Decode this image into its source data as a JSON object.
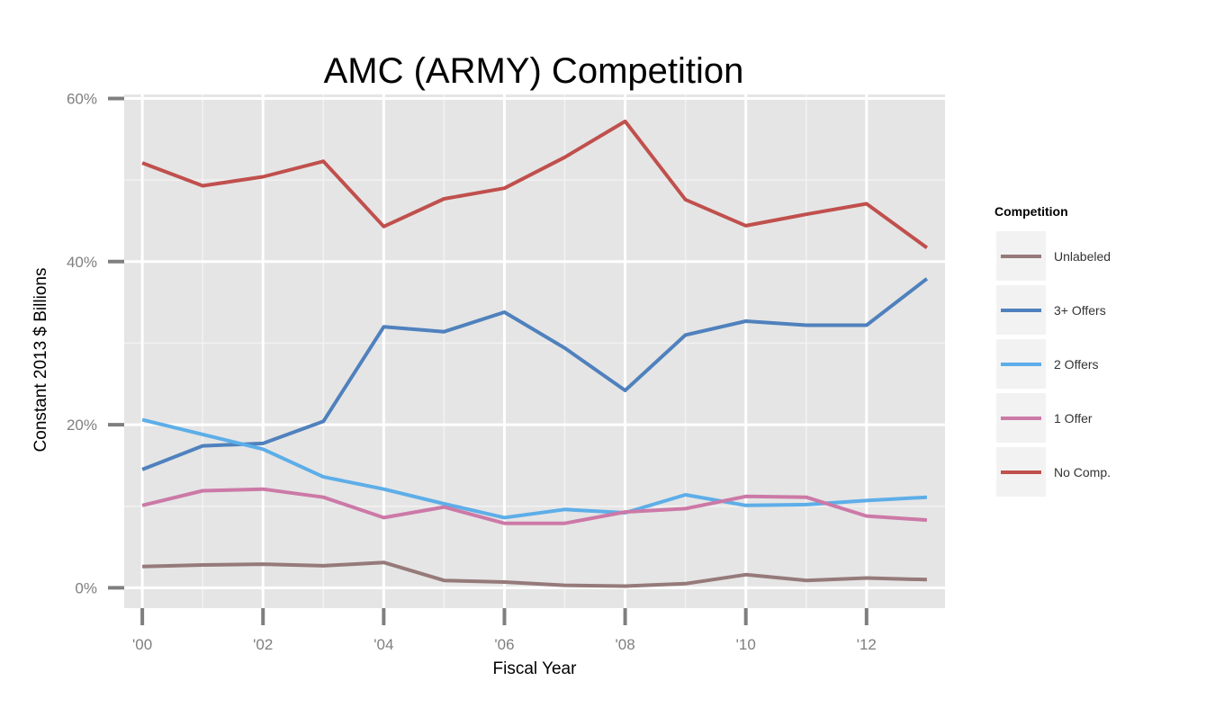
{
  "chart_data": {
    "type": "line",
    "title": "AMC (ARMY) Competition",
    "xlabel": "Fiscal Year",
    "ylabel": "Constant 2013 $ Billions",
    "x": [
      2000,
      2001,
      2002,
      2003,
      2004,
      2005,
      2006,
      2007,
      2008,
      2009,
      2010,
      2011,
      2012,
      2013
    ],
    "xlim": [
      1999.7,
      2013.3
    ],
    "ylim": [
      -2.5,
      60.5
    ],
    "x_ticks": [
      2000,
      2002,
      2004,
      2006,
      2008,
      2010,
      2012
    ],
    "x_tick_labels": [
      "'00",
      "'02",
      "'04",
      "'06",
      "'08",
      "'10",
      "'12"
    ],
    "y_ticks": [
      0,
      20,
      40,
      60
    ],
    "y_tick_labels": [
      "0%",
      "20%",
      "40%",
      "60%"
    ],
    "grid": true,
    "legend": {
      "title": "Competition",
      "position": "right"
    },
    "series": [
      {
        "name": "Unlabeled",
        "color": "#967a7a",
        "values": [
          2.6,
          2.8,
          2.9,
          2.7,
          3.1,
          0.9,
          0.7,
          0.3,
          0.2,
          0.5,
          1.6,
          0.9,
          1.2,
          1.0
        ]
      },
      {
        "name": "3+ Offers",
        "color": "#4f81bd",
        "values": [
          14.5,
          17.4,
          17.7,
          20.4,
          32.0,
          31.4,
          33.8,
          29.4,
          24.2,
          31.0,
          32.7,
          32.2,
          32.2,
          37.9
        ]
      },
      {
        "name": "2 Offers",
        "color": "#5daee8",
        "values": [
          20.6,
          18.8,
          17.0,
          13.6,
          12.1,
          10.3,
          8.6,
          9.6,
          9.2,
          11.4,
          10.1,
          10.2,
          10.7,
          11.1
        ]
      },
      {
        "name": "1 Offer",
        "color": "#cc79a7",
        "values": [
          10.1,
          11.9,
          12.1,
          11.1,
          8.6,
          9.9,
          7.9,
          7.9,
          9.3,
          9.7,
          11.2,
          11.1,
          8.8,
          8.3
        ]
      },
      {
        "name": "No Comp.",
        "color": "#c0504d",
        "values": [
          52.1,
          49.3,
          50.4,
          52.3,
          44.3,
          47.7,
          49.0,
          52.8,
          57.2,
          47.6,
          44.4,
          45.8,
          47.1,
          41.7
        ]
      }
    ]
  }
}
